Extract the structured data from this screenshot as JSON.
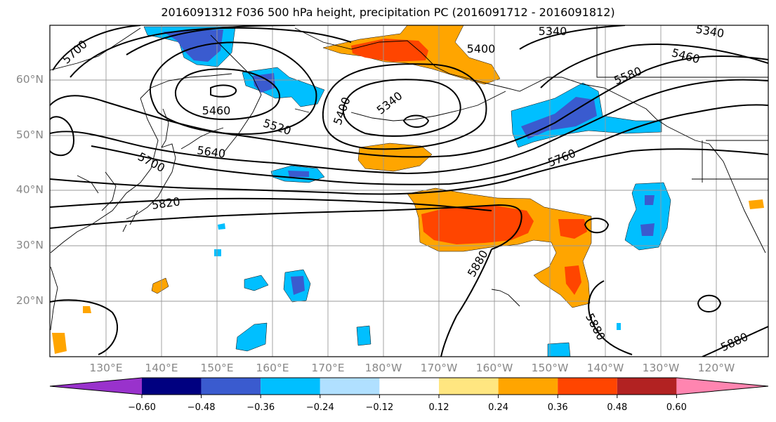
{
  "title": "2016091312 F036 500 hPa height, precipitation PC (2016091712 - 2016091812)",
  "lat_labels": [
    "60°N",
    "50°N",
    "40°N",
    "30°N",
    "20°N"
  ],
  "lon_labels": [
    "130°E",
    "140°E",
    "150°E",
    "160°E",
    "170°E",
    "180°W",
    "170°W",
    "160°W",
    "150°W",
    "140°W",
    "130°W",
    "120°W"
  ],
  "contour_labels": [
    "5700",
    "5460",
    "5520",
    "5640",
    "5700",
    "5820",
    "5400",
    "5340",
    "5400",
    "5340",
    "5340",
    "5460",
    "5580",
    "5760",
    "5880",
    "5880",
    "5880"
  ],
  "colorbar": {
    "tick_labels": [
      "−0.60",
      "−0.48",
      "−0.36",
      "−0.24",
      "−0.12",
      "0.12",
      "0.24",
      "0.36",
      "0.48",
      "0.60"
    ],
    "colors": [
      "#9932cc",
      "#000080",
      "#3a5bcf",
      "#00bfff",
      "#b0e0ff",
      "#ffffff",
      "#ffe680",
      "#ffa500",
      "#ff4500",
      "#b22222",
      "#ff85b0"
    ]
  }
}
